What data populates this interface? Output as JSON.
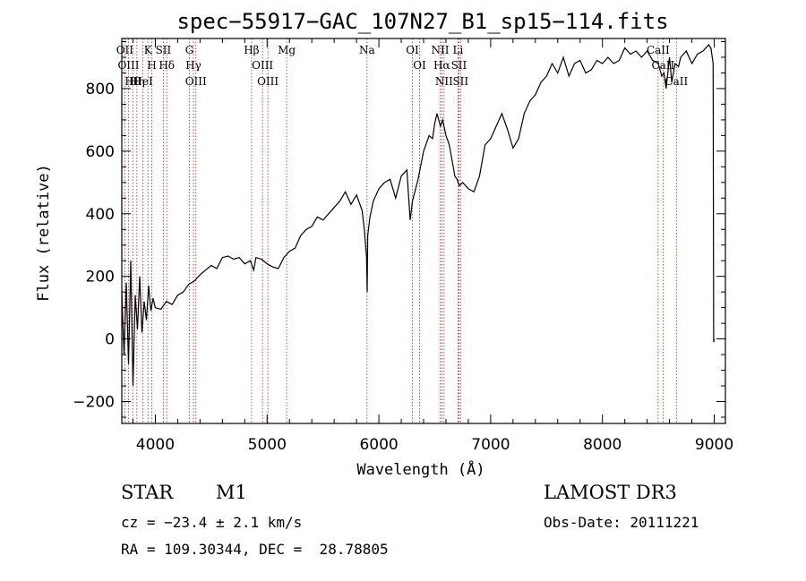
{
  "chart_data": {
    "type": "line",
    "title": "spec−55917−GAC_107N27_B1_sp15−114.fits",
    "xlabel": "Wavelength (Å)",
    "ylabel": "Flux (relative)",
    "xlim": [
      3700,
      9100
    ],
    "ylim": [
      -270,
      960
    ],
    "xticks": [
      4000,
      5000,
      6000,
      7000,
      8000,
      9000
    ],
    "yticks": [
      -200,
      0,
      200,
      400,
      600,
      800
    ],
    "ytick_labels": [
      "−200",
      "0",
      "200",
      "400",
      "600",
      "800"
    ],
    "grid": false,
    "spectrum": {
      "x": [
        3700,
        3720,
        3740,
        3760,
        3780,
        3800,
        3820,
        3840,
        3860,
        3880,
        3900,
        3920,
        3940,
        3960,
        3980,
        4000,
        4050,
        4100,
        4150,
        4200,
        4250,
        4300,
        4350,
        4400,
        4450,
        4500,
        4550,
        4600,
        4650,
        4700,
        4750,
        4800,
        4850,
        4880,
        4900,
        4950,
        5000,
        5050,
        5100,
        5150,
        5200,
        5250,
        5300,
        5350,
        5400,
        5450,
        5500,
        5550,
        5600,
        5650,
        5700,
        5750,
        5800,
        5850,
        5870,
        5890,
        5895,
        5900,
        5920,
        5950,
        6000,
        6050,
        6100,
        6150,
        6200,
        6250,
        6280,
        6300,
        6350,
        6400,
        6450,
        6480,
        6500,
        6520,
        6550,
        6570,
        6600,
        6630,
        6650,
        6680,
        6700,
        6720,
        6750,
        6800,
        6850,
        6900,
        6950,
        7000,
        7050,
        7100,
        7150,
        7200,
        7250,
        7300,
        7350,
        7400,
        7450,
        7500,
        7550,
        7600,
        7650,
        7700,
        7750,
        7800,
        7850,
        7900,
        7950,
        8000,
        8050,
        8100,
        8150,
        8200,
        8250,
        8300,
        8350,
        8400,
        8450,
        8500,
        8530,
        8550,
        8570,
        8600,
        8620,
        8650,
        8680,
        8700,
        8750,
        8800,
        8850,
        8900,
        8950,
        8970,
        8990,
        8995,
        9000
      ],
      "y": [
        150,
        -50,
        180,
        -80,
        250,
        -150,
        140,
        30,
        200,
        20,
        120,
        60,
        170,
        90,
        130,
        100,
        95,
        120,
        110,
        140,
        150,
        175,
        185,
        205,
        220,
        235,
        225,
        260,
        265,
        255,
        260,
        240,
        250,
        220,
        260,
        255,
        240,
        230,
        225,
        260,
        280,
        290,
        330,
        350,
        360,
        390,
        380,
        400,
        420,
        440,
        470,
        430,
        460,
        410,
        350,
        260,
        150,
        330,
        390,
        440,
        480,
        500,
        510,
        450,
        520,
        540,
        380,
        440,
        510,
        600,
        650,
        640,
        690,
        720,
        680,
        700,
        650,
        620,
        580,
        520,
        510,
        490,
        500,
        480,
        470,
        520,
        620,
        640,
        680,
        720,
        670,
        610,
        640,
        720,
        760,
        780,
        820,
        840,
        880,
        850,
        900,
        840,
        880,
        890,
        850,
        860,
        890,
        880,
        900,
        880,
        890,
        930,
        910,
        920,
        900,
        920,
        890,
        880,
        840,
        850,
        800,
        900,
        820,
        880,
        870,
        900,
        920,
        880,
        910,
        920,
        940,
        930,
        880,
        -10,
        0
      ]
    },
    "line_markers": [
      {
        "label": "Hθ",
        "x": 3798
      },
      {
        "label": "OII",
        "x": 3727
      },
      {
        "label": "OIII",
        "x": 3760
      },
      {
        "label": "HeI",
        "x": 3889
      },
      {
        "label": "Hη",
        "x": 3835
      },
      {
        "label": "K",
        "x": 3934
      },
      {
        "label": "H",
        "x": 3969
      },
      {
        "label": "SII",
        "x": 4072
      },
      {
        "label": "Hδ",
        "x": 4102
      },
      {
        "label": "OIII",
        "x": 4363
      },
      {
        "label": "Hγ",
        "x": 4341
      },
      {
        "label": "G",
        "x": 4305
      },
      {
        "label": "Hβ",
        "x": 4861
      },
      {
        "label": "OIII",
        "x": 4959
      },
      {
        "label": "OIII",
        "x": 5007
      },
      {
        "label": "Mg",
        "x": 5175
      },
      {
        "label": "Na",
        "x": 5894
      },
      {
        "label": "OI",
        "x": 6300
      },
      {
        "label": "OI",
        "x": 6364
      },
      {
        "label": "Hα",
        "x": 6563
      },
      {
        "label": "NII",
        "x": 6548
      },
      {
        "label": "NII",
        "x": 6583
      },
      {
        "label": "Li",
        "x": 6708
      },
      {
        "label": "SII",
        "x": 6716
      },
      {
        "label": "SII",
        "x": 6731
      },
      {
        "label": "CaII",
        "x": 8498
      },
      {
        "label": "CaII",
        "x": 8542
      },
      {
        "label": "CaII",
        "x": 8662
      }
    ]
  },
  "info": {
    "class": "STAR",
    "subclass": "M1",
    "survey": "LAMOST DR3",
    "cz": "cz = −23.4 ± 2.1 km/s",
    "obs_date": "Obs-Date: 20111221",
    "radec": "RA = 109.30344, DEC =  28.78805"
  }
}
